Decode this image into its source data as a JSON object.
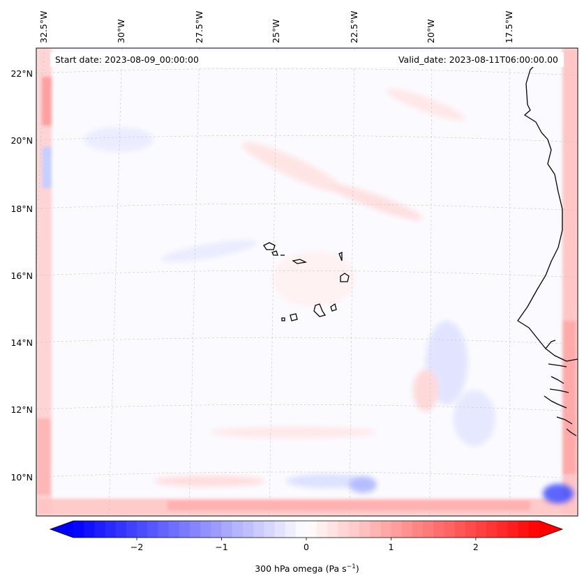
{
  "figure": {
    "start_label": "Start date: 2023-08-09_00:00:00",
    "valid_label": "Valid_date: 2023-08-11T06:00:00.00",
    "colorbar_label_prefix": "300 hPa omega (Pa s",
    "colorbar_label_exp": "−1",
    "colorbar_label_suffix": ")"
  },
  "map": {
    "projection": "lambert-conformal",
    "lon_range": [
      -33.0,
      -15.5
    ],
    "lat_range": [
      9.0,
      22.8
    ],
    "lon_ticks": [
      {
        "value": -32.5,
        "label": "32.5°W"
      },
      {
        "value": -30.0,
        "label": "30°W"
      },
      {
        "value": -27.5,
        "label": "27.5°W"
      },
      {
        "value": -25.0,
        "label": "25°W"
      },
      {
        "value": -22.5,
        "label": "22.5°W"
      },
      {
        "value": -20.0,
        "label": "20°W"
      },
      {
        "value": -17.5,
        "label": "17.5°W"
      }
    ],
    "lat_ticks": [
      {
        "value": 22,
        "label": "22°N"
      },
      {
        "value": 20,
        "label": "20°N"
      },
      {
        "value": 18,
        "label": "18°N"
      },
      {
        "value": 16,
        "label": "16°N"
      },
      {
        "value": 14,
        "label": "14°N"
      },
      {
        "value": 12,
        "label": "12°N"
      },
      {
        "value": 10,
        "label": "10°N"
      }
    ],
    "features": [
      "Cape Verde islands",
      "West African coastline (Senegal, Gambia, Guinea-Bissau)"
    ]
  },
  "colorbar": {
    "cmap": "bwr",
    "vmin": -2.75,
    "vmax": 2.75,
    "extend": "both",
    "ticks": [
      {
        "value": -2,
        "label": "−2"
      },
      {
        "value": -1,
        "label": "−1"
      },
      {
        "value": 0,
        "label": "0"
      },
      {
        "value": 1,
        "label": "1"
      },
      {
        "value": 2,
        "label": "2"
      }
    ],
    "colors": {
      "low": "#0000ff",
      "mid": "#ffffff",
      "high": "#ff0000"
    }
  }
}
